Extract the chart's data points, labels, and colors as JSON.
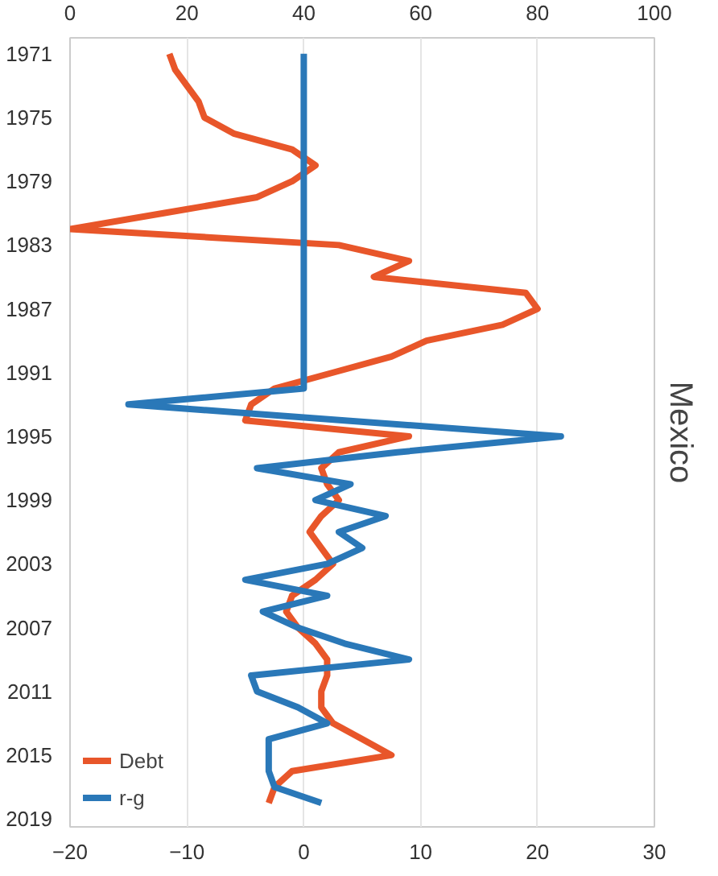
{
  "chart_data": {
    "type": "line",
    "title": "Mexico",
    "orientation": "horizontal",
    "x": [
      1971,
      1972,
      1973,
      1974,
      1975,
      1976,
      1977,
      1978,
      1979,
      1980,
      1981,
      1982,
      1983,
      1984,
      1985,
      1986,
      1987,
      1988,
      1989,
      1990,
      1991,
      1992,
      1993,
      1994,
      1995,
      1996,
      1997,
      1998,
      1999,
      2000,
      2001,
      2002,
      2003,
      2004,
      2005,
      2006,
      2007,
      2008,
      2009,
      2010,
      2011,
      2012,
      2013,
      2014,
      2015,
      2016,
      2017,
      2018
    ],
    "series": [
      {
        "name": "Debt",
        "color": "#e8562a",
        "axis": "x2",
        "values": [
          17,
          18,
          20,
          22,
          23,
          28,
          38,
          42,
          38,
          32,
          16,
          0,
          46,
          58,
          52,
          78,
          80,
          74,
          61,
          55,
          45,
          35,
          31,
          30,
          58,
          46,
          43,
          44,
          46,
          43,
          41,
          43,
          45,
          42,
          38,
          37,
          39,
          42,
          44,
          44,
          43,
          43,
          45,
          50,
          55,
          38,
          35,
          34
        ]
      },
      {
        "name": "r-g",
        "color": "#2a78b8",
        "values": [
          0,
          0,
          0,
          0,
          0,
          0,
          0,
          0,
          0,
          0,
          0,
          0,
          0,
          0,
          0,
          0,
          0,
          0,
          0,
          0,
          0,
          0,
          -15,
          3.5,
          22,
          8,
          -4,
          4,
          1,
          7,
          3,
          5,
          2,
          -5,
          2,
          -3.5,
          -0.5,
          3.5,
          9,
          -4.5,
          -4,
          -0.5,
          2,
          -3,
          -3,
          -3,
          -2.5,
          1.5
        ]
      }
    ],
    "xlim": [
      -20,
      30
    ],
    "xticks": [
      -20,
      -10,
      0,
      10,
      20,
      30
    ],
    "x2lim": [
      0,
      100
    ],
    "x2ticks": [
      0,
      20,
      40,
      60,
      80,
      100
    ],
    "ylim": [
      2019.5,
      1970
    ],
    "yticks": [
      1971,
      1975,
      1979,
      1983,
      1987,
      1991,
      1995,
      1999,
      2003,
      2007,
      2011,
      2015,
      2019
    ],
    "grid": "x",
    "legend": "bottom left",
    "line_style": "solid",
    "marker": "none"
  }
}
